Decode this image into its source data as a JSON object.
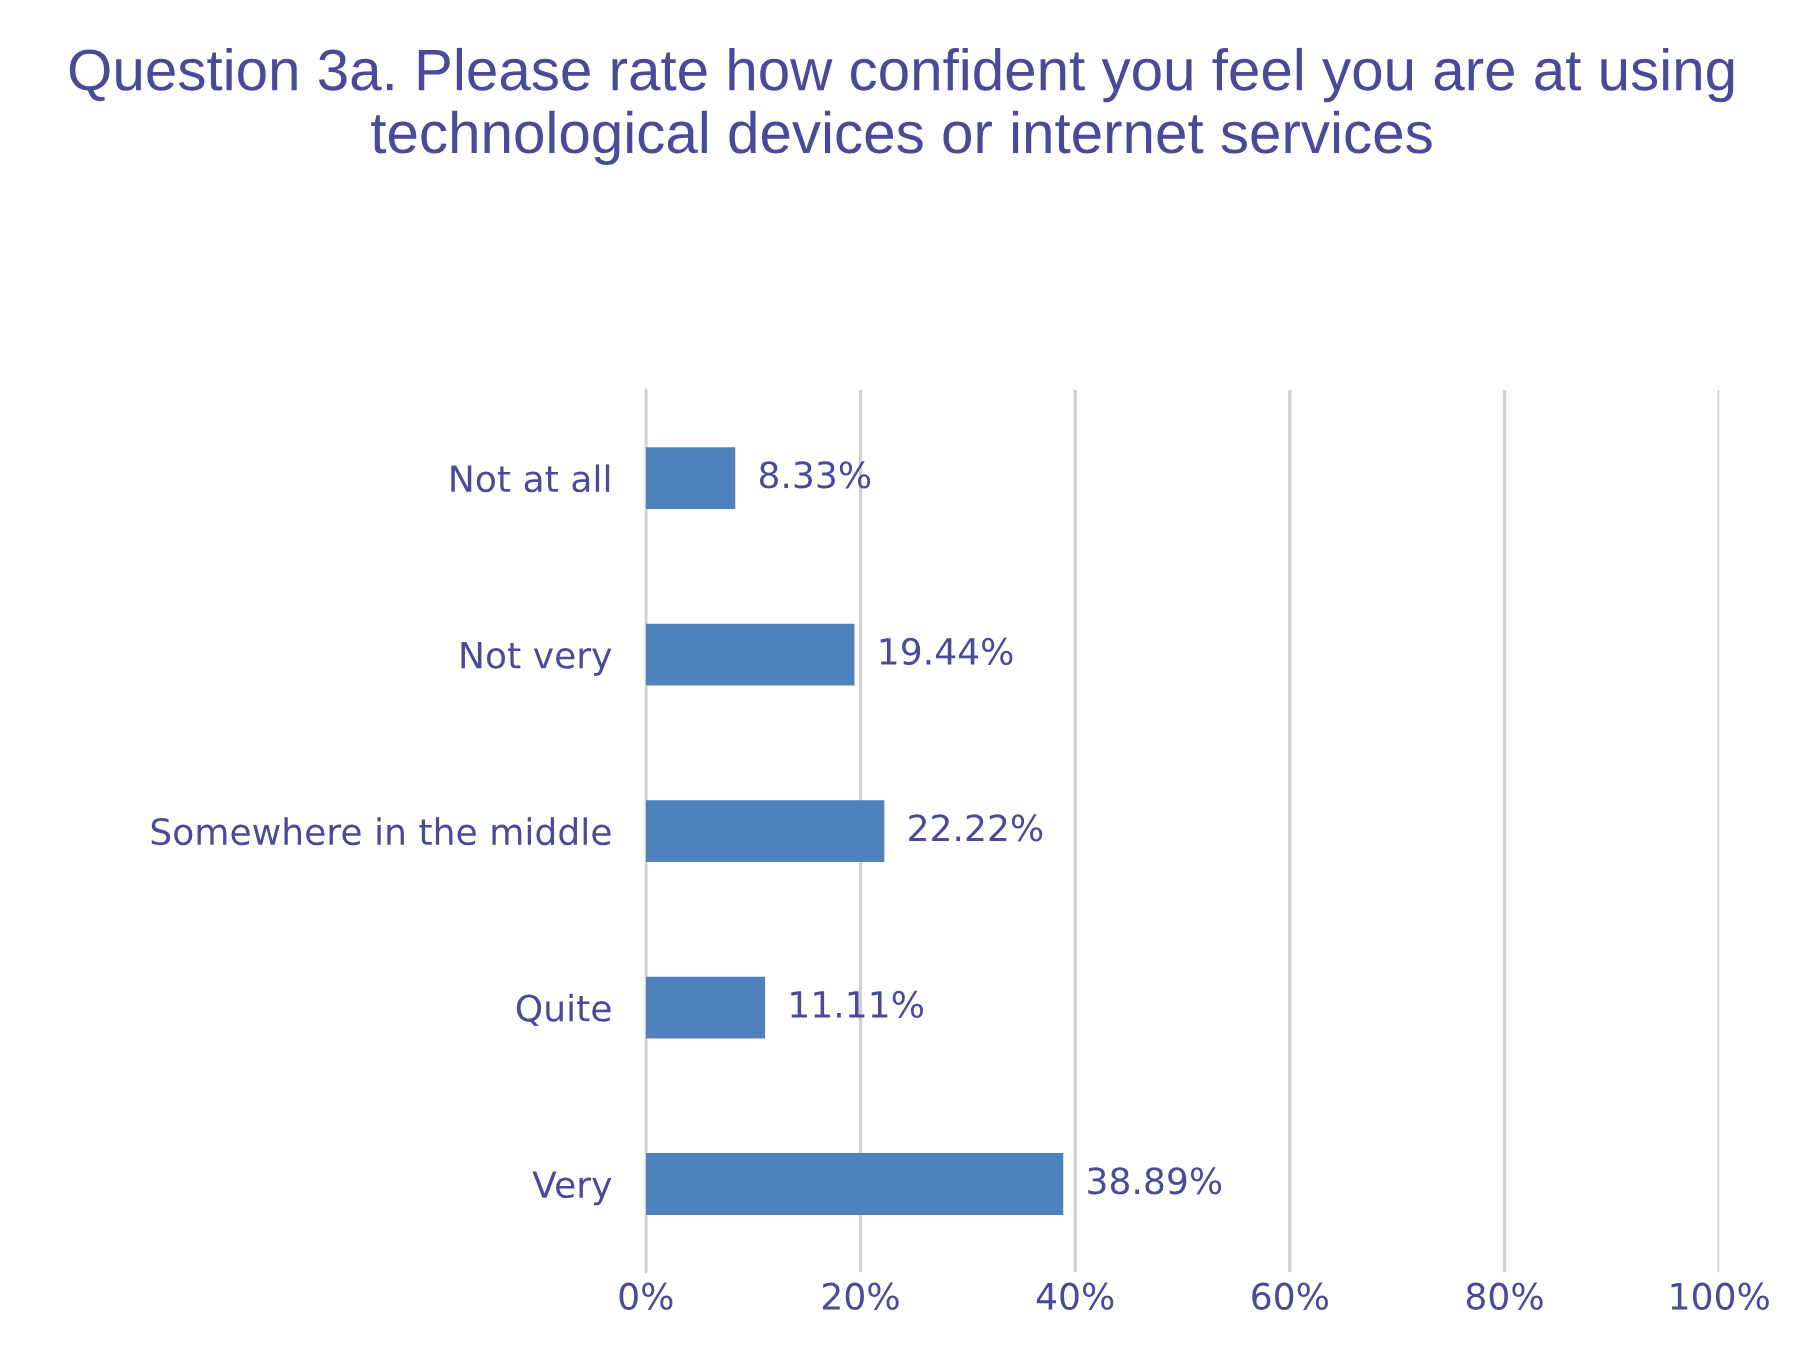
{
  "chart_data": {
    "type": "bar",
    "orientation": "horizontal",
    "title": "Question 3a. Please rate how confident you feel you are at using technological devices or internet services",
    "categories": [
      "Not at all",
      "Not very",
      "Somewhere in the middle",
      "Quite",
      "Very"
    ],
    "values": [
      8.33,
      19.44,
      22.22,
      11.11,
      38.89
    ],
    "value_labels": [
      "8.33%",
      "19.44%",
      "22.22%",
      "11.11%",
      "38.89%"
    ],
    "color": "#4f81bd",
    "xlim": [
      0,
      100
    ],
    "xticks": [
      {
        "value": 0,
        "label": "0%"
      },
      {
        "value": 20,
        "label": "20%"
      },
      {
        "value": 40,
        "label": "40%"
      },
      {
        "value": 60,
        "label": "60%"
      },
      {
        "value": 80,
        "label": "80%"
      },
      {
        "value": 100,
        "label": "100%"
      }
    ],
    "grid": "x",
    "legend": false
  }
}
